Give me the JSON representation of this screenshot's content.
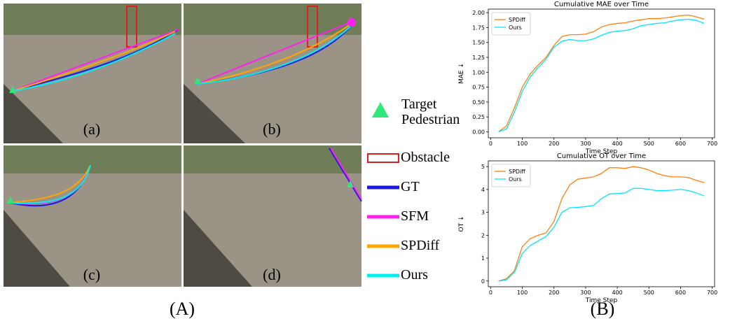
{
  "figure": {
    "caption_a": "(A)",
    "caption_b": "(B)",
    "image_labels": [
      "(a)",
      "(b)",
      "(c)",
      "(d)"
    ],
    "legend": [
      {
        "label": "Target Pedestrian",
        "color": "#2ee87a"
      },
      {
        "label": "Obstacle",
        "color": "#e02020"
      },
      {
        "label": "GT",
        "color": "#1a1adf"
      },
      {
        "label": "SFM",
        "color": "#ff22ee"
      },
      {
        "label": "SPDiff",
        "color": "#ffa500"
      },
      {
        "label": "Ours",
        "color": "#00f0f0"
      }
    ]
  },
  "chart_data": [
    {
      "type": "line",
      "title": "Cumulative MAE over Time",
      "xlabel": "Time Step",
      "ylabel": "MAE ↓",
      "legend": "upper left",
      "x": [
        25,
        50,
        75,
        100,
        125,
        150,
        175,
        200,
        225,
        250,
        275,
        300,
        325,
        350,
        375,
        400,
        425,
        450,
        475,
        500,
        525,
        550,
        575,
        600,
        625,
        650,
        675
      ],
      "xlim": [
        -7.5,
        707.5
      ],
      "xticks": [
        0,
        100,
        200,
        300,
        400,
        500,
        600,
        700
      ],
      "ylim": [
        -0.1,
        2.06
      ],
      "yticks": [
        {
          "value": 0,
          "label": "0.00"
        },
        {
          "value": 0.25,
          "label": "0.25"
        },
        {
          "value": 0.5,
          "label": "0.50"
        },
        {
          "value": 0.75,
          "label": "0.75"
        },
        {
          "value": 1,
          "label": "1.00"
        },
        {
          "value": 1.25,
          "label": "1.25"
        },
        {
          "value": 1.5,
          "label": "1.50"
        },
        {
          "value": 1.75,
          "label": "1.75"
        },
        {
          "value": 2,
          "label": "2.00"
        }
      ],
      "series": [
        {
          "name": "SPDiff",
          "color": "#ff7f0e",
          "values": [
            0,
            0.1,
            0.4,
            0.75,
            0.97,
            1.12,
            1.25,
            1.45,
            1.6,
            1.63,
            1.63,
            1.64,
            1.68,
            1.76,
            1.8,
            1.82,
            1.83,
            1.86,
            1.88,
            1.9,
            1.9,
            1.91,
            1.93,
            1.95,
            1.96,
            1.93,
            1.89
          ]
        },
        {
          "name": "Ours",
          "color": "#00e5ff",
          "values": [
            0,
            0.05,
            0.33,
            0.68,
            0.92,
            1.08,
            1.22,
            1.42,
            1.52,
            1.55,
            1.53,
            1.53,
            1.56,
            1.62,
            1.67,
            1.69,
            1.7,
            1.73,
            1.78,
            1.8,
            1.82,
            1.83,
            1.86,
            1.88,
            1.89,
            1.87,
            1.82
          ]
        }
      ]
    },
    {
      "type": "line",
      "title": "Cumulative OT over Time",
      "xlabel": "Time Step",
      "ylabel": "OT ↓",
      "legend": "upper left",
      "x": [
        25,
        50,
        75,
        100,
        125,
        150,
        175,
        200,
        225,
        250,
        275,
        300,
        325,
        350,
        375,
        400,
        425,
        450,
        475,
        500,
        525,
        550,
        575,
        600,
        625,
        650,
        675
      ],
      "xlim": [
        -7.5,
        707.5
      ],
      "xticks": [
        0,
        100,
        200,
        300,
        400,
        500,
        600,
        700
      ],
      "ylim": [
        -0.25,
        5.25
      ],
      "yticks": [
        0,
        1,
        2,
        3,
        4,
        5
      ],
      "series": [
        {
          "name": "SPDiff",
          "color": "#ff7f0e",
          "values": [
            0,
            0.1,
            0.45,
            1.5,
            1.85,
            2,
            2.1,
            2.6,
            3.6,
            4.2,
            4.45,
            4.5,
            4.55,
            4.7,
            4.95,
            4.95,
            4.92,
            5,
            4.95,
            4.85,
            4.7,
            4.6,
            4.55,
            4.55,
            4.52,
            4.4,
            4.3
          ]
        },
        {
          "name": "Ours",
          "color": "#00e5ff",
          "values": [
            0,
            0.05,
            0.38,
            1.2,
            1.55,
            1.75,
            1.95,
            2.35,
            3,
            3.2,
            3.22,
            3.25,
            3.3,
            3.6,
            3.8,
            3.82,
            3.85,
            4.05,
            4.05,
            4,
            3.95,
            3.95,
            3.97,
            4,
            3.95,
            3.85,
            3.72
          ]
        }
      ]
    }
  ]
}
